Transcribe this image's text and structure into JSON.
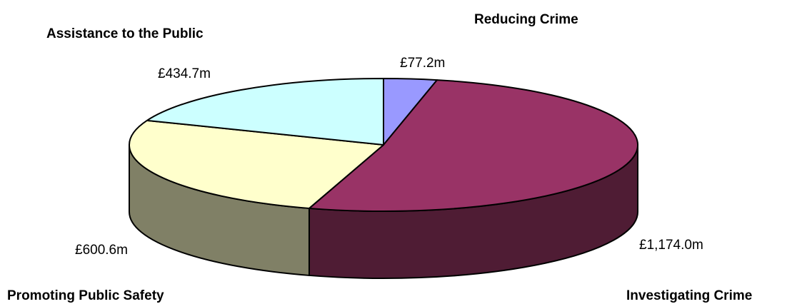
{
  "chart_data": {
    "type": "pie",
    "style": "3d-pie",
    "legend": "none",
    "categories": [
      "Reducing Crime",
      "Investigating Crime",
      "Promoting Public Safety",
      "Assistance to the Public"
    ],
    "values": [
      77.2,
      1174.0,
      600.6,
      434.7
    ],
    "value_labels": [
      "£77.2m",
      "£1,174.0m",
      "£600.6m",
      "£434.7m"
    ],
    "colors": {
      "top": [
        "#9999FF",
        "#993366",
        "#FFFFCC",
        "#CCFFFF"
      ],
      "side": [
        "#5C5C99",
        "#4F1C34",
        "#808066",
        "#668080"
      ]
    }
  }
}
